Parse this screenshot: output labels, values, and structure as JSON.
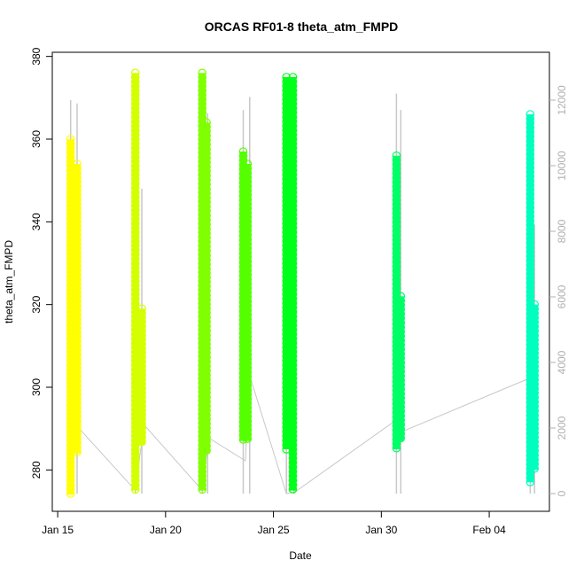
{
  "chart_data": {
    "type": "scatter",
    "title": "ORCAS RF01-8 theta_atm_FMPD",
    "xlabel": "Date",
    "ylabel": "theta_atm_FMPD",
    "x_ticks": [
      "Jan 15",
      "Jan 20",
      "Jan 25",
      "Jan 30",
      "Feb 04"
    ],
    "y_ticks": [
      "280",
      "300",
      "320",
      "340",
      "360",
      "380"
    ],
    "y2_ticks": [
      "0",
      "2000",
      "4000",
      "6000",
      "8000",
      "10000",
      "12000"
    ],
    "ylim": [
      270,
      381
    ],
    "y2lim": [
      0,
      12500
    ],
    "grid": false,
    "secondary_color": "#c8c8c8",
    "flights": [
      {
        "color": "#ffff00",
        "segments": [
          {
            "x": "Jan 15.6",
            "ymin": 274,
            "ymax": 360
          },
          {
            "x": "Jan 15.9",
            "ymin": 284,
            "ymax": 354
          }
        ]
      },
      {
        "color": "#d4ff00",
        "segments": [
          {
            "x": "Jan 18.6",
            "ymin": 275,
            "ymax": 376
          },
          {
            "x": "Jan 18.9",
            "ymin": 286,
            "ymax": 319
          }
        ]
      },
      {
        "color": "#80ff00",
        "segments": [
          {
            "x": "Jan 21.7",
            "ymin": 275,
            "ymax": 376
          },
          {
            "x": "Jan 21.9",
            "ymin": 284,
            "ymax": 364
          }
        ]
      },
      {
        "color": "#55ff00",
        "segments": [
          {
            "x": "Jan 23.6",
            "ymin": 287,
            "ymax": 357
          },
          {
            "x": "Jan 23.8",
            "ymin": 287,
            "ymax": 354
          }
        ]
      },
      {
        "color": "#00ff1a",
        "segments": [
          {
            "x": "Jan 25.6",
            "ymin": 285,
            "ymax": 375
          },
          {
            "x": "Jan 25.9",
            "ymin": 275,
            "ymax": 375
          }
        ]
      },
      {
        "color": "#00ff66",
        "segments": [
          {
            "x": "Jan 30.7",
            "ymin": 285,
            "ymax": 356
          },
          {
            "x": "Jan 30.9",
            "ymin": 287,
            "ymax": 322
          }
        ]
      },
      {
        "color": "#00ffbf",
        "segments": [
          {
            "x": "Feb 05.9",
            "ymin": 277,
            "ymax": 366
          },
          {
            "x": "Feb 06.1",
            "ymin": 280,
            "ymax": 320
          }
        ]
      }
    ],
    "altitude_track": [
      [
        "Jan 15.7",
        2200
      ],
      [
        "Jan 18.6",
        100
      ],
      [
        "Jan 19.0",
        2100
      ],
      [
        "Jan 21.7",
        100
      ],
      [
        "Jan 22.0",
        1700
      ],
      [
        "Jan 23.7",
        1000
      ],
      [
        "Jan 23.9",
        3600
      ],
      [
        "Jan 25.5",
        200
      ],
      [
        "Jan 25.6",
        0
      ],
      [
        "Jan 26.0",
        50
      ],
      [
        "Jan 30.6",
        2200
      ],
      [
        "Jan 31.0",
        1900
      ],
      [
        "Feb 05.8",
        3500
      ],
      [
        "Feb 06.1",
        3600
      ]
    ],
    "altitude_spikes": [
      {
        "x": "Jan 15.6",
        "y": 12000
      },
      {
        "x": "Jan 15.9",
        "y": 11900
      },
      {
        "x": "Jan 18.6",
        "y": 10400
      },
      {
        "x": "Jan 18.9",
        "y": 9300
      },
      {
        "x": "Jan 21.7",
        "y": 11900
      },
      {
        "x": "Jan 21.95",
        "y": 11600
      },
      {
        "x": "Jan 23.6",
        "y": 11700
      },
      {
        "x": "Jan 23.9",
        "y": 12100
      },
      {
        "x": "Jan 25.6",
        "y": 11800
      },
      {
        "x": "Jan 25.95",
        "y": 11400
      },
      {
        "x": "Jan 30.7",
        "y": 12200
      },
      {
        "x": "Jan 30.9",
        "y": 11700
      },
      {
        "x": "Feb 05.9",
        "y": 11500
      },
      {
        "x": "Feb 06.1",
        "y": 8200
      }
    ]
  }
}
